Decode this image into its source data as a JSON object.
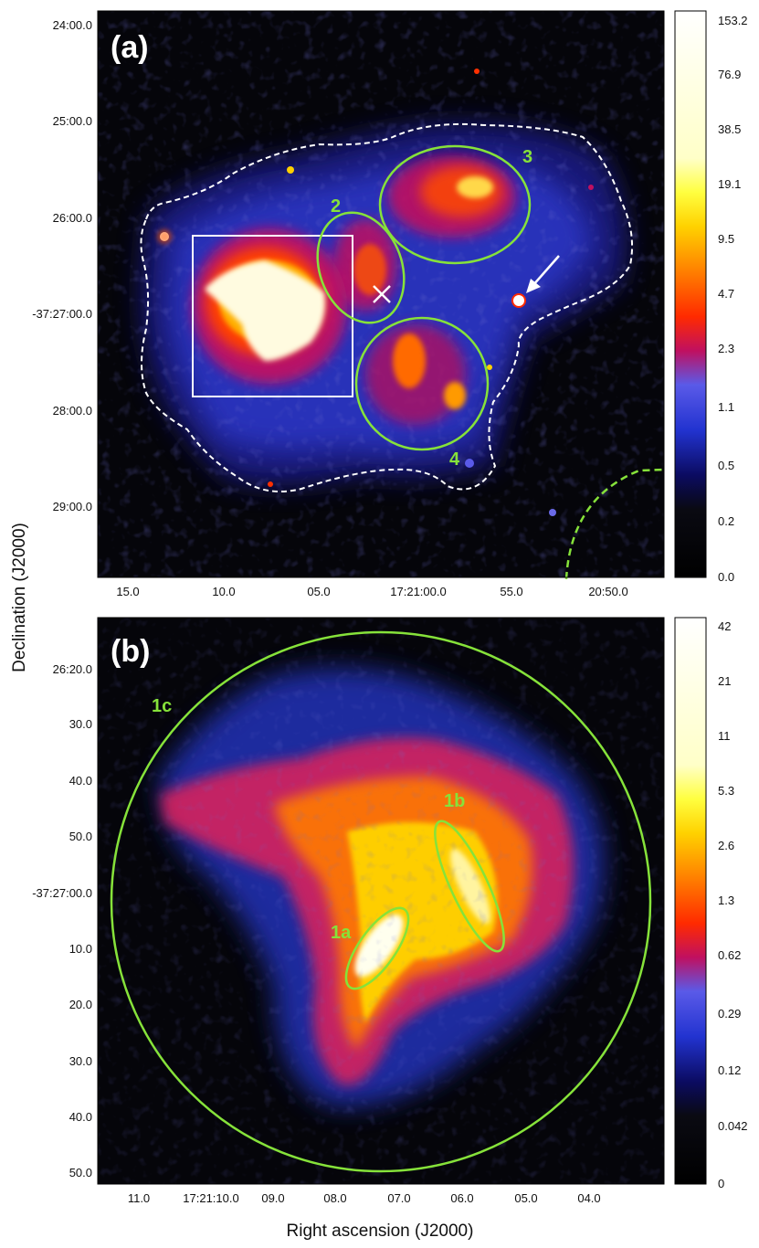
{
  "figure": {
    "ylabel": "Declination (J2000)",
    "xlabel": "Right ascension (J2000)"
  },
  "panel_a": {
    "letter": "(a)",
    "region_labels": [
      "2",
      "3",
      "4"
    ],
    "dec_ticks": [
      "24:00.0",
      "25:00.0",
      "26:00.0",
      "-37:27:00.0",
      "28:00.0",
      "29:00.0"
    ],
    "ra_ticks": [
      "15.0",
      "10.0",
      "05.0",
      "17:21:00.0",
      "55.0",
      "20:50.0"
    ],
    "colorbar_ticks": [
      "153.2",
      "76.9",
      "38.5",
      "19.1",
      "9.5",
      "4.7",
      "2.3",
      "1.1",
      "0.5",
      "0.2",
      "0.0"
    ]
  },
  "panel_b": {
    "letter": "(b)",
    "region_labels": [
      "1a",
      "1b",
      "1c"
    ],
    "dec_ticks": [
      "26:20.0",
      "30.0",
      "40.0",
      "50.0",
      "-37:27:00.0",
      "10.0",
      "20.0",
      "30.0",
      "40.0",
      "50.0"
    ],
    "ra_ticks": [
      "11.0",
      "17:21:10.0",
      "09.0",
      "08.0",
      "07.0",
      "06.0",
      "05.0",
      "04.0"
    ],
    "colorbar_ticks": [
      "42",
      "21",
      "11",
      "5.3",
      "2.6",
      "1.3",
      "0.62",
      "0.29",
      "0.12",
      "0.042",
      "0"
    ]
  },
  "colors": {
    "region_green": "#86e23a",
    "box_white": "#ffffff",
    "background": "#05050a"
  }
}
